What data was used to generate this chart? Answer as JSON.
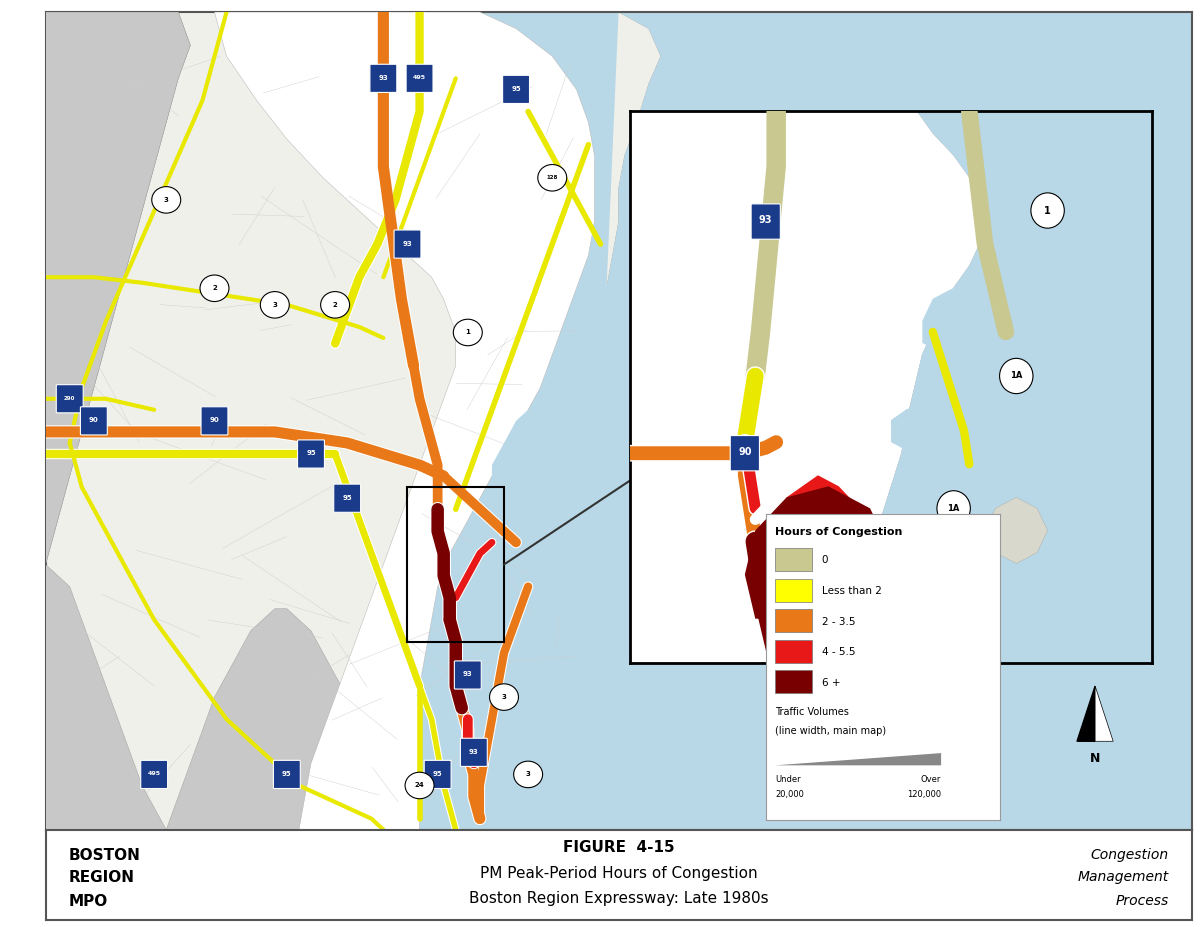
{
  "figure_width": 12.0,
  "figure_height": 9.27,
  "dpi": 100,
  "background_color": "#ffffff",
  "map_bg_color": "#b8d8e8",
  "land_color": "#f0f0ea",
  "land_white_color": "#ffffff",
  "outer_gray_color": "#c8c8c8",
  "water_color": "#b8d8e8",
  "title_text": "FIGURE  4-15",
  "subtitle1": "PM Peak-Period Hours of Congestion",
  "subtitle2": "Boston Region Expressway: Late 1980s",
  "left_text1": "BOSTON",
  "left_text2": "REGION",
  "left_text3": "MPO",
  "right_text1": "Congestion",
  "right_text2": "Management",
  "right_text3": "Process",
  "legend_title": "Hours of Congestion",
  "legend_items": [
    {
      "label": "0",
      "color": "#c8c890"
    },
    {
      "label": "Less than 2",
      "color": "#ffff00"
    },
    {
      "label": "2 - 3.5",
      "color": "#e87818"
    },
    {
      "label": "4 - 5.5",
      "color": "#e81818"
    },
    {
      "label": "6 +",
      "color": "#780000"
    }
  ],
  "road_beige": "#c8c890",
  "road_yellow": "#e8e800",
  "road_orange": "#e87818",
  "road_red": "#e81818",
  "road_dark_red": "#780000",
  "road_white": "#ffffff",
  "map_border_color": "#555555",
  "footer_border_color": "#555555"
}
